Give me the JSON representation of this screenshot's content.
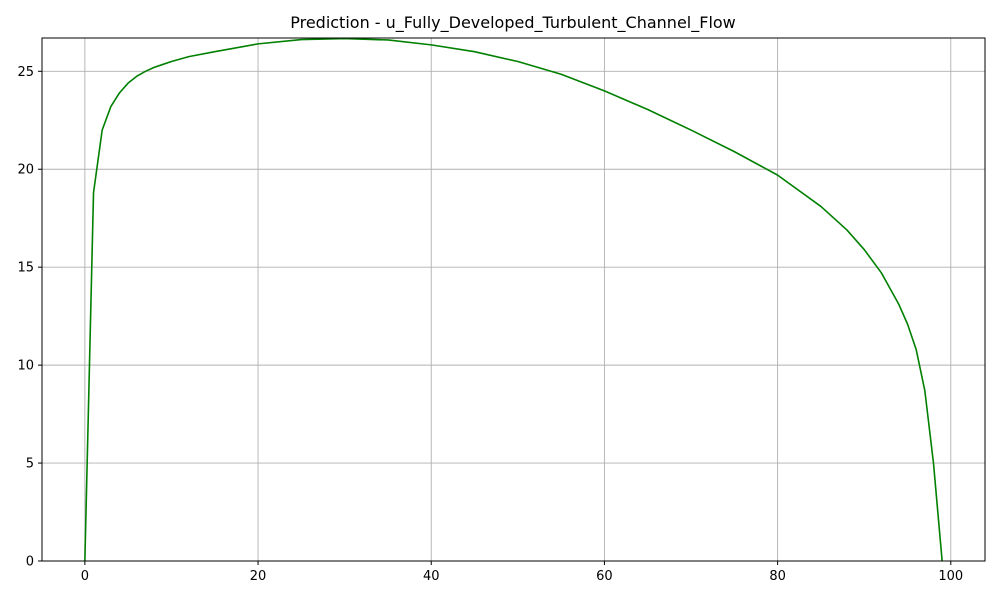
{
  "chart_data": {
    "type": "line",
    "title": "Prediction - u_Fully_Developed_Turbulent_Channel_Flow",
    "xlabel": "",
    "ylabel": "",
    "xlim": [
      -4.95,
      103.95
    ],
    "ylim": [
      0,
      26.7
    ],
    "xticks": [
      0,
      20,
      40,
      60,
      80,
      100
    ],
    "yticks": [
      0,
      5,
      10,
      15,
      20,
      25
    ],
    "grid": true,
    "series": [
      {
        "color": "#008000",
        "x": [
          0,
          1,
          2,
          3,
          4,
          5,
          6,
          7,
          8,
          9,
          10,
          12,
          15,
          20,
          25,
          30,
          35,
          40,
          45,
          50,
          55,
          60,
          65,
          70,
          75,
          80,
          85,
          88,
          90,
          92,
          94,
          95,
          96,
          97,
          98,
          99
        ],
        "y": [
          0,
          18.8,
          22.0,
          23.2,
          23.9,
          24.4,
          24.75,
          25.0,
          25.2,
          25.35,
          25.5,
          25.75,
          26.0,
          26.4,
          26.62,
          26.67,
          26.6,
          26.35,
          26.0,
          25.5,
          24.85,
          24.0,
          23.05,
          22.0,
          20.9,
          19.7,
          18.1,
          16.9,
          15.9,
          14.7,
          13.1,
          12.1,
          10.8,
          8.7,
          5.0,
          0
        ]
      }
    ]
  }
}
